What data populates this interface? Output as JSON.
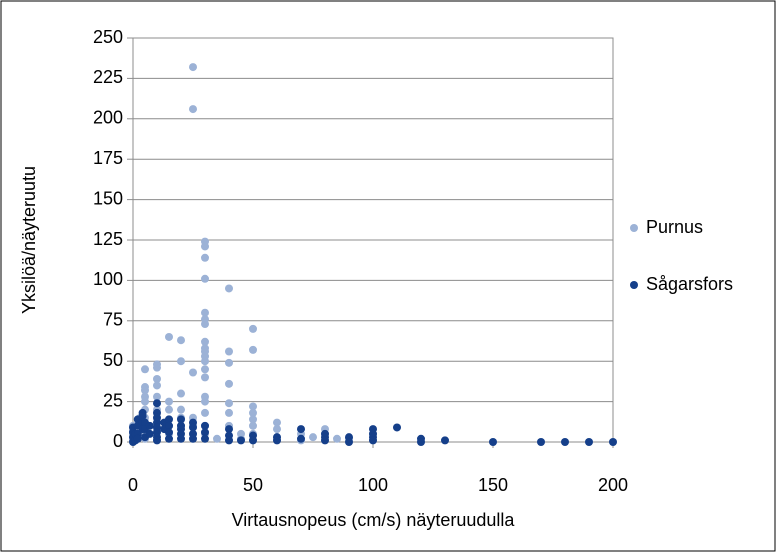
{
  "chart_data": {
    "type": "scatter",
    "x_label": "Virtausnopeus (cm/s) näyteruudulla",
    "y_label": "Yksilöä/näyteruutu",
    "xlim": [
      0,
      200
    ],
    "xticks": [
      0,
      50,
      100,
      150,
      200
    ],
    "ylim": [
      0,
      250
    ],
    "yticks": [
      0,
      25,
      50,
      75,
      100,
      125,
      150,
      175,
      200,
      225,
      250
    ],
    "grid": true,
    "legend": "right",
    "series": [
      {
        "name": "Purnus",
        "color": "#9cb2d6",
        "x": [
          0,
          0,
          0,
          0,
          0,
          1,
          2,
          3,
          3,
          5,
          5,
          5,
          5,
          5,
          5,
          5,
          5,
          5,
          5,
          10,
          10,
          10,
          10,
          10,
          10,
          10,
          10,
          15,
          15,
          15,
          15,
          15,
          20,
          20,
          20,
          20,
          20,
          20,
          25,
          25,
          25,
          25,
          25,
          25,
          30,
          30,
          30,
          30,
          30,
          30,
          30,
          30,
          30,
          30,
          30,
          30,
          30,
          30,
          30,
          30,
          30,
          30,
          30,
          35,
          40,
          40,
          40,
          40,
          40,
          40,
          40,
          45,
          45,
          50,
          50,
          50,
          50,
          50,
          50,
          50,
          60,
          60,
          60,
          70,
          70,
          75,
          80,
          80,
          85,
          90,
          100
        ],
        "values": [
          1,
          3,
          5,
          7,
          10,
          2,
          4,
          10,
          15,
          45,
          34,
          32,
          28,
          25,
          20,
          15,
          10,
          5,
          2,
          48,
          46,
          39,
          35,
          28,
          20,
          15,
          8,
          65,
          25,
          20,
          10,
          5,
          63,
          50,
          30,
          20,
          15,
          10,
          232,
          206,
          43,
          15,
          10,
          5,
          124,
          121,
          114,
          101,
          80,
          76,
          73,
          62,
          58,
          56,
          53,
          50,
          45,
          40,
          28,
          25,
          18,
          10,
          5,
          2,
          95,
          56,
          49,
          36,
          24,
          18,
          10,
          5,
          2,
          70,
          57,
          22,
          18,
          14,
          10,
          5,
          12,
          8,
          3,
          5,
          1,
          3,
          8,
          5,
          2,
          2,
          5
        ]
      },
      {
        "name": "Sågarsfors",
        "color": "#153f8a",
        "x": [
          0,
          0,
          0,
          0,
          1,
          1,
          2,
          2,
          2,
          2,
          4,
          4,
          4,
          4,
          5,
          5,
          5,
          7,
          7,
          10,
          10,
          10,
          10,
          10,
          10,
          10,
          10,
          13,
          13,
          15,
          15,
          15,
          15,
          20,
          20,
          20,
          20,
          20,
          25,
          25,
          25,
          25,
          30,
          30,
          30,
          40,
          40,
          40,
          45,
          50,
          50,
          60,
          60,
          70,
          70,
          80,
          80,
          80,
          90,
          90,
          100,
          100,
          100,
          100,
          110,
          120,
          120,
          130,
          150,
          170,
          180,
          190,
          200
        ],
        "values": [
          0,
          3,
          6,
          9,
          1,
          5,
          14,
          10,
          5,
          2,
          18,
          16,
          12,
          8,
          12,
          8,
          3,
          10,
          5,
          24,
          18,
          15,
          12,
          9,
          6,
          3,
          1,
          12,
          8,
          14,
          10,
          6,
          2,
          14,
          10,
          8,
          5,
          2,
          12,
          9,
          5,
          2,
          10,
          6,
          2,
          8,
          4,
          1,
          1,
          4,
          1,
          3,
          1,
          8,
          2,
          5,
          3,
          1,
          3,
          0,
          8,
          5,
          3,
          1,
          9,
          2,
          0,
          1,
          0,
          0,
          0,
          0,
          0
        ]
      }
    ]
  }
}
